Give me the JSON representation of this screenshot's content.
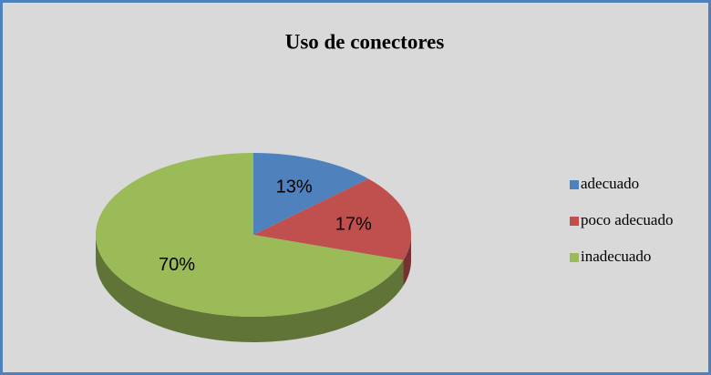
{
  "chart_data": {
    "type": "pie",
    "title": "Uso de conectores",
    "categories": [
      "adecuado",
      "poco adecuado",
      "inadecuado"
    ],
    "values": [
      13,
      17,
      70
    ],
    "value_labels": [
      "13%",
      "17%",
      "70%"
    ],
    "colors": [
      "#4f81bd",
      "#c0504d",
      "#9bbb59"
    ],
    "legend": "right"
  }
}
